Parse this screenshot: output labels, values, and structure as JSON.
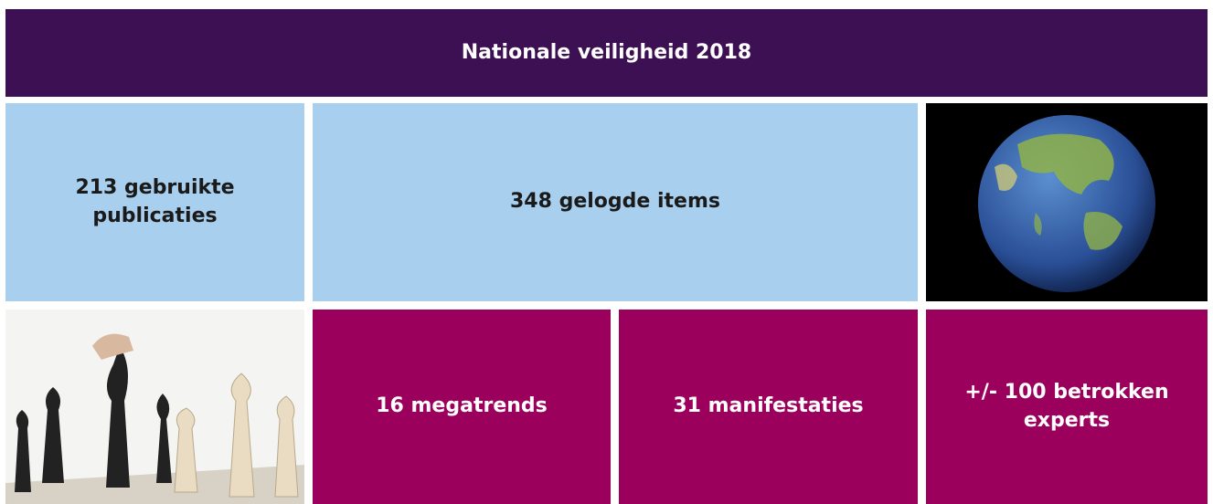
{
  "header": {
    "title": "Nationale veiligheid 2018"
  },
  "tiles": [
    {
      "label": "213 gebruikte publicaties"
    },
    {
      "label": "348 gelogde items"
    },
    {
      "label": "16 megatrends"
    },
    {
      "label": "31 manifestaties"
    },
    {
      "label": "+/- 100 betrokken experts"
    }
  ]
}
